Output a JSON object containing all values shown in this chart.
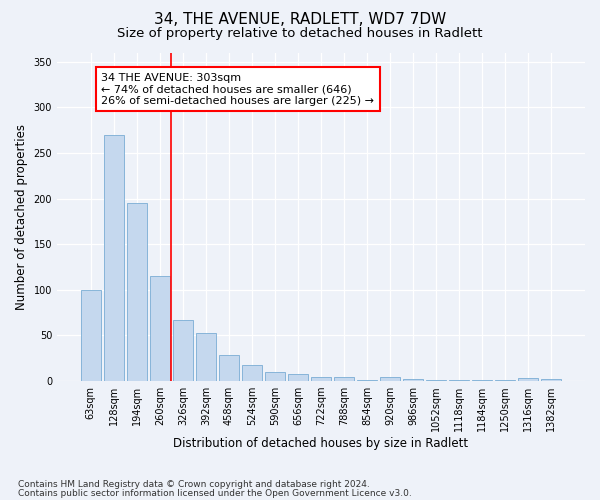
{
  "title_line1": "34, THE AVENUE, RADLETT, WD7 7DW",
  "title_line2": "Size of property relative to detached houses in Radlett",
  "xlabel": "Distribution of detached houses by size in Radlett",
  "ylabel": "Number of detached properties",
  "bar_color": "#c5d8ee",
  "bar_edge_color": "#7aadd4",
  "categories": [
    "63sqm",
    "128sqm",
    "194sqm",
    "260sqm",
    "326sqm",
    "392sqm",
    "458sqm",
    "524sqm",
    "590sqm",
    "656sqm",
    "722sqm",
    "788sqm",
    "854sqm",
    "920sqm",
    "986sqm",
    "1052sqm",
    "1118sqm",
    "1184sqm",
    "1250sqm",
    "1316sqm",
    "1382sqm"
  ],
  "values": [
    100,
    270,
    195,
    115,
    67,
    53,
    29,
    18,
    10,
    8,
    5,
    5,
    1,
    5,
    2,
    1,
    1,
    1,
    1,
    3,
    2
  ],
  "annotation_text": "34 THE AVENUE: 303sqm\n← 74% of detached houses are smaller (646)\n26% of semi-detached houses are larger (225) →",
  "vline_x": 3.5,
  "footer_line1": "Contains HM Land Registry data © Crown copyright and database right 2024.",
  "footer_line2": "Contains public sector information licensed under the Open Government Licence v3.0.",
  "ylim": [
    0,
    360
  ],
  "background_color": "#eef2f9",
  "grid_color": "#ffffff",
  "title_fontsize": 11,
  "subtitle_fontsize": 9.5,
  "axis_label_fontsize": 8.5,
  "tick_fontsize": 7,
  "footer_fontsize": 6.5,
  "annotation_fontsize": 8
}
